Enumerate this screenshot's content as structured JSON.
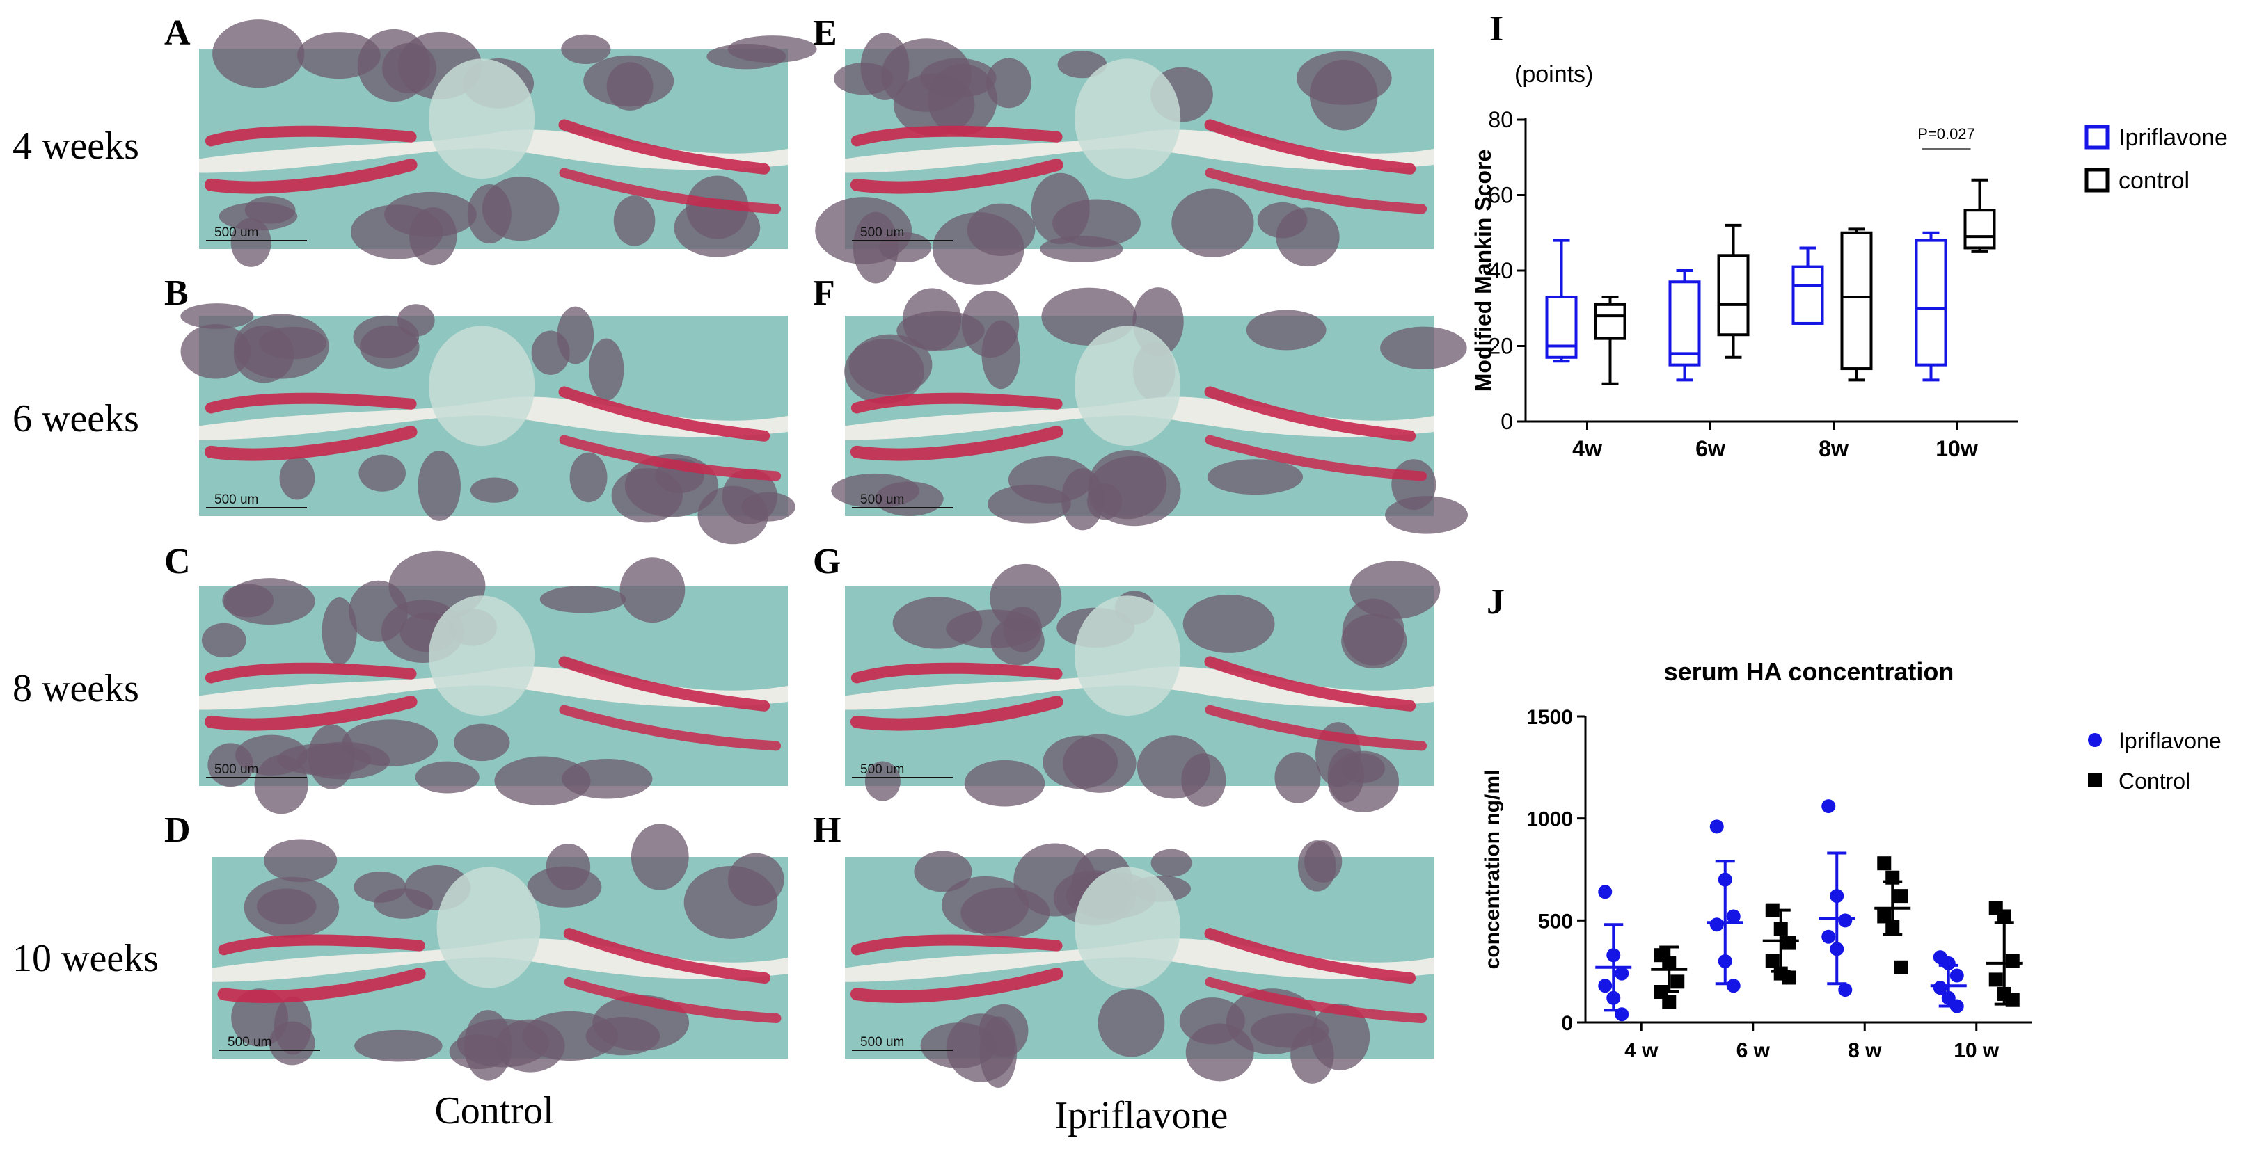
{
  "panels": [
    {
      "letter": "A",
      "scale": "500 um"
    },
    {
      "letter": "B",
      "scale": "500 um"
    },
    {
      "letter": "C",
      "scale": "500 um"
    },
    {
      "letter": "D",
      "scale": "500 um"
    },
    {
      "letter": "E",
      "scale": "500 um"
    },
    {
      "letter": "F",
      "scale": "500 um"
    },
    {
      "letter": "G",
      "scale": "500 um"
    },
    {
      "letter": "H",
      "scale": "500 um"
    }
  ],
  "rows": [
    "4 weeks",
    "6 weeks",
    "8 weeks",
    "10 weeks"
  ],
  "columns": [
    "Control",
    "Ipriflavone"
  ],
  "chart_letters": [
    "I",
    "J"
  ],
  "colors": {
    "ipriflavone": "#1515e6",
    "control": "#000000",
    "safranin": "#c8284e",
    "fastgreen": "#8fc6bf"
  },
  "chart_data": [
    {
      "type": "box",
      "unit": "(points)",
      "ylabel": "Modified Mankin Score",
      "ylim": [
        0,
        80
      ],
      "yticks": [
        0,
        20,
        40,
        60,
        80
      ],
      "categories": [
        "4w",
        "6w",
        "8w",
        "10w"
      ],
      "annotation": {
        "text": "P=0.027",
        "category": "10w"
      },
      "legend": {
        "position": "top-right"
      },
      "series": [
        {
          "name": "Ipriflavone",
          "color": "#1515e6",
          "boxes": [
            {
              "min": 16,
              "q1": 17,
              "median": 20,
              "q3": 33,
              "max": 48
            },
            {
              "min": 11,
              "q1": 15,
              "median": 18,
              "q3": 37,
              "max": 40
            },
            {
              "min": 26,
              "q1": 26,
              "median": 36,
              "q3": 41,
              "max": 46
            },
            {
              "min": 11,
              "q1": 15,
              "median": 30,
              "q3": 48,
              "max": 50
            }
          ]
        },
        {
          "name": "control",
          "color": "#000000",
          "boxes": [
            {
              "min": 10,
              "q1": 22,
              "median": 28,
              "q3": 31,
              "max": 33
            },
            {
              "min": 17,
              "q1": 23,
              "median": 31,
              "q3": 44,
              "max": 52
            },
            {
              "min": 11,
              "q1": 14,
              "median": 33,
              "q3": 50,
              "max": 51
            },
            {
              "min": 45,
              "q1": 46,
              "median": 49,
              "q3": 56,
              "max": 64
            }
          ]
        }
      ]
    },
    {
      "type": "scatter",
      "title": "serum HA concentration",
      "ylabel": "concentration ng/ml",
      "ylim": [
        0,
        1500
      ],
      "yticks": [
        0,
        500,
        1000,
        1500
      ],
      "categories": [
        "4 w",
        "6 w",
        "8 w",
        "10 w"
      ],
      "legend": {
        "position": "top-right"
      },
      "series": [
        {
          "name": "Ipriflavone",
          "color": "#1515e6",
          "marker": "circle",
          "points": [
            [
              640,
              330,
              240,
              180,
              120,
              40
            ],
            [
              960,
              700,
              520,
              480,
              300,
              180
            ],
            [
              1060,
              620,
              500,
              420,
              360,
              160
            ],
            [
              320,
              290,
              230,
              170,
              120,
              80
            ]
          ],
          "mean": [
            270,
            490,
            510,
            180
          ],
          "sd": [
            210,
            300,
            320,
            100
          ]
        },
        {
          "name": "Control",
          "color": "#000000",
          "marker": "square",
          "points": [
            [
              330,
              290,
              200,
              150,
              100
            ],
            [
              550,
              460,
              390,
              300,
              240,
              220
            ],
            [
              780,
              710,
              620,
              520,
              470,
              270
            ],
            [
              560,
              520,
              300,
              210,
              140,
              110
            ]
          ],
          "mean": [
            260,
            400,
            560,
            290
          ],
          "sd": [
            110,
            150,
            130,
            200
          ]
        }
      ]
    }
  ]
}
